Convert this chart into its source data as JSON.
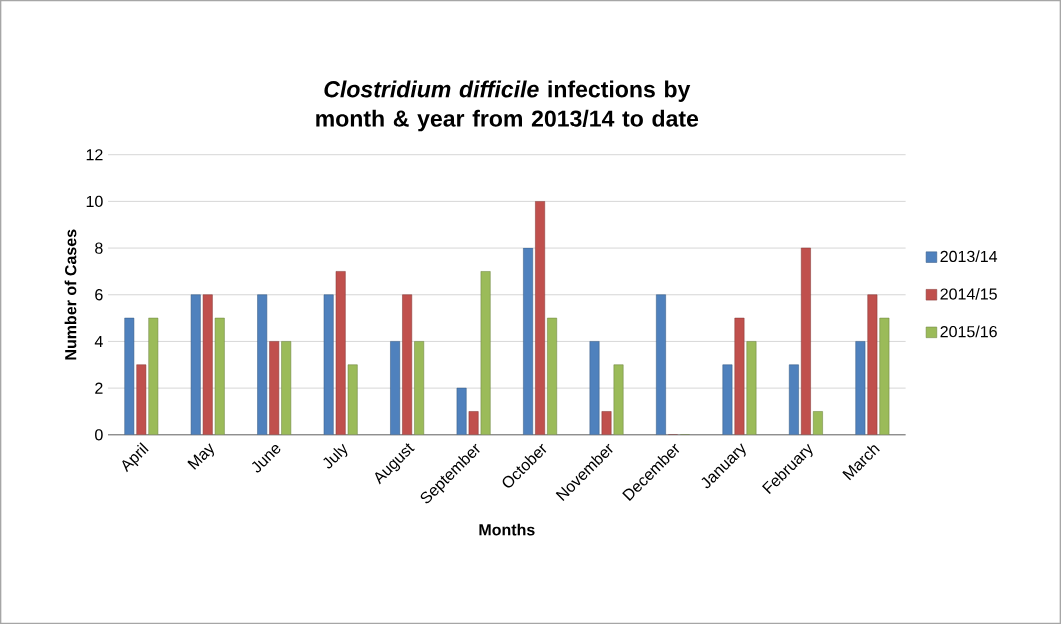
{
  "chart_data": {
    "type": "bar",
    "title": "*Clostridium difficile* infections by month & year from 2013/14 to date",
    "xlabel": "Months",
    "ylabel": "Number of Cases",
    "categories": [
      "April",
      "May",
      "June",
      "July",
      "August",
      "September",
      "October",
      "November",
      "December",
      "January",
      "February",
      "March"
    ],
    "series": [
      {
        "name": "2013/14",
        "color": "#4f81bd",
        "values": [
          5,
          6,
          6,
          6,
          4,
          2,
          8,
          4,
          6,
          3,
          3,
          4
        ]
      },
      {
        "name": "2014/15",
        "color": "#c0504d",
        "values": [
          3,
          6,
          4,
          7,
          6,
          1,
          10,
          1,
          0,
          5,
          8,
          6
        ]
      },
      {
        "name": "2015/16",
        "color": "#9bbb59",
        "values": [
          5,
          5,
          4,
          3,
          4,
          7,
          5,
          3,
          0,
          4,
          1,
          5
        ]
      }
    ],
    "ylim": [
      0,
      12
    ],
    "yticks": [
      0,
      2,
      4,
      6,
      8,
      10,
      12
    ],
    "grid": "y",
    "legend": "right"
  }
}
